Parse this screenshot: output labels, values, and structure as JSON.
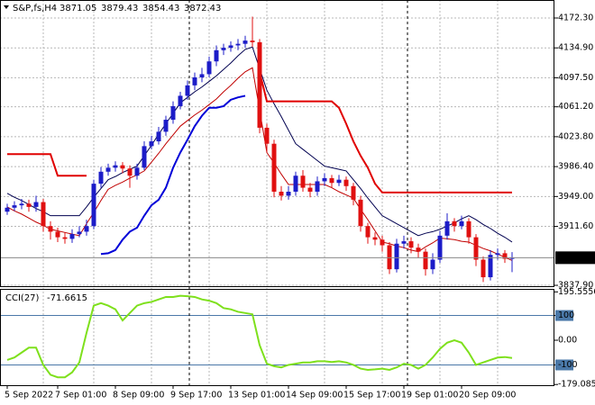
{
  "chart_data": [
    {
      "type": "candlestick",
      "title": "S&P,fs,H4",
      "categories": [
        "5 Sep 2022",
        null,
        null,
        null,
        null,
        null,
        null,
        "7 Sep 01:00",
        null,
        null,
        null,
        null,
        null,
        null,
        null,
        "8 Sep 09:00",
        null,
        null,
        null,
        null,
        null,
        null,
        null,
        "9 Sep 17:00",
        null,
        null,
        null,
        null,
        null,
        null,
        null,
        "13 Sep 01:00",
        null,
        null,
        null,
        null,
        null,
        null,
        null,
        "14 Sep 09:00",
        null,
        null,
        null,
        null,
        null,
        null,
        null,
        "15 Sep 17:00",
        null,
        null,
        null,
        null,
        null,
        null,
        null,
        "19 Sep 01:00",
        null,
        null,
        null,
        null,
        null,
        null,
        null,
        "20 Sep 09:00",
        null,
        null,
        null,
        null,
        null,
        null,
        null
      ],
      "candles": [
        [
          3930,
          3940,
          3926,
          3935
        ],
        [
          3935,
          3943,
          3931,
          3938
        ],
        [
          3938,
          3946,
          3933,
          3940
        ],
        [
          3940,
          3945,
          3930,
          3936
        ],
        [
          3936,
          3950,
          3930,
          3942
        ],
        [
          3942,
          3946,
          3905,
          3912
        ],
        [
          3912,
          3918,
          3895,
          3905
        ],
        [
          3905,
          3910,
          3892,
          3898
        ],
        [
          3898,
          3904,
          3890,
          3896
        ],
        [
          3896,
          3908,
          3891,
          3902
        ],
        [
          3902,
          3912,
          3898,
          3905
        ],
        [
          3905,
          3920,
          3900,
          3912
        ],
        [
          3912,
          3970,
          3908,
          3965
        ],
        [
          3965,
          3986,
          3960,
          3980
        ],
        [
          3980,
          3990,
          3975,
          3985
        ],
        [
          3985,
          3993,
          3980,
          3988
        ],
        [
          3988,
          3992,
          3978,
          3984
        ],
        [
          3984,
          3988,
          3960,
          3975
        ],
        [
          3975,
          3990,
          3970,
          3985
        ],
        [
          3985,
          4018,
          3982,
          4012
        ],
        [
          4012,
          4025,
          4008,
          4018
        ],
        [
          4018,
          4036,
          4014,
          4030
        ],
        [
          4030,
          4050,
          4025,
          4045
        ],
        [
          4045,
          4068,
          4040,
          4062
        ],
        [
          4062,
          4080,
          4058,
          4075
        ],
        [
          4075,
          4094,
          4070,
          4088
        ],
        [
          4088,
          4104,
          4082,
          4098
        ],
        [
          4098,
          4110,
          4092,
          4102
        ],
        [
          4102,
          4124,
          4098,
          4118
        ],
        [
          4118,
          4138,
          4112,
          4132
        ],
        [
          4132,
          4140,
          4126,
          4135
        ],
        [
          4135,
          4143,
          4130,
          4138
        ],
        [
          4138,
          4146,
          4132,
          4140
        ],
        [
          4140,
          4150,
          4135,
          4144
        ],
        [
          4144,
          4174,
          4136,
          4142
        ],
        [
          4142,
          4146,
          4028,
          4035
        ],
        [
          4035,
          4040,
          4005,
          4015
        ],
        [
          4015,
          4020,
          3948,
          3955
        ],
        [
          3955,
          3962,
          3944,
          3950
        ],
        [
          3950,
          3962,
          3945,
          3955
        ],
        [
          3955,
          3980,
          3950,
          3975
        ],
        [
          3975,
          3982,
          3955,
          3960
        ],
        [
          3960,
          3966,
          3948,
          3955
        ],
        [
          3955,
          3974,
          3950,
          3968
        ],
        [
          3968,
          3978,
          3962,
          3972
        ],
        [
          3972,
          3976,
          3960,
          3966
        ],
        [
          3966,
          3976,
          3962,
          3970
        ],
        [
          3970,
          3974,
          3956,
          3962
        ],
        [
          3962,
          3966,
          3938,
          3945
        ],
        [
          3945,
          3950,
          3905,
          3912
        ],
        [
          3912,
          3916,
          3890,
          3898
        ],
        [
          3898,
          3904,
          3888,
          3895
        ],
        [
          3895,
          3900,
          3880,
          3888
        ],
        [
          3888,
          3892,
          3852,
          3858
        ],
        [
          3858,
          3896,
          3854,
          3890
        ],
        [
          3890,
          3900,
          3884,
          3893
        ],
        [
          3893,
          3898,
          3878,
          3885
        ],
        [
          3885,
          3890,
          3872,
          3880
        ],
        [
          3880,
          3884,
          3850,
          3858
        ],
        [
          3858,
          3878,
          3852,
          3870
        ],
        [
          3870,
          3906,
          3866,
          3900
        ],
        [
          3900,
          3928,
          3895,
          3918
        ],
        [
          3918,
          3922,
          3905,
          3912
        ],
        [
          3912,
          3925,
          3908,
          3918
        ],
        [
          3918,
          3922,
          3890,
          3898
        ],
        [
          3898,
          3902,
          3862,
          3870
        ],
        [
          3870,
          3874,
          3842,
          3848
        ],
        [
          3848,
          3882,
          3844,
          3876
        ],
        [
          3876,
          3884,
          3870,
          3878
        ],
        [
          3878,
          3882,
          3866,
          3871.05
        ],
        [
          3871.05,
          3879.43,
          3854.43,
          3872.43
        ]
      ],
      "up_color": "#1c1cc8",
      "down_color": "#e01010",
      "series": [
        {
          "color": "#000050",
          "width": 1,
          "values": [
            3953,
            3948,
            3944,
            3939,
            3934,
            3930,
            3925,
            3925,
            3925,
            3925,
            3925,
            3936,
            3948,
            3959,
            3970,
            3974,
            3979,
            3983,
            3987,
            4000,
            4013,
            4027,
            4040,
            4053,
            4066,
            4073,
            4080,
            4086,
            4093,
            4100,
            4108,
            4116,
            4125,
            4133,
            4136,
            4109,
            4082,
            4065,
            4049,
            4032,
            4015,
            4008,
            4001,
            3994,
            3987,
            3985,
            3983,
            3981,
            3970,
            3959,
            3947,
            3936,
            3925,
            3920,
            3915,
            3910,
            3905,
            3900,
            3903,
            3905,
            3908,
            3912,
            3916,
            3921,
            3925,
            3920,
            3914,
            3909,
            3903,
            3898,
            3892
          ]
        },
        {
          "color": "#c00000",
          "width": 1,
          "values": [
            3936,
            3931,
            3927,
            3922,
            3917,
            3913,
            3908,
            3906,
            3904,
            3902,
            3900,
            3915,
            3929,
            3944,
            3958,
            3963,
            3967,
            3972,
            3976,
            3981,
            3992,
            4003,
            4015,
            4026,
            4037,
            4044,
            4051,
            4057,
            4064,
            4071,
            4080,
            4088,
            4097,
            4105,
            4110,
            4057,
            4004,
            3991,
            3977,
            3964,
            3964,
            3964,
            3964,
            3964,
            3964,
            3960,
            3955,
            3951,
            3947,
            3933,
            3920,
            3906,
            3892,
            3890,
            3887,
            3885,
            3882,
            3880,
            3886,
            3891,
            3897,
            3896,
            3895,
            3893,
            3892,
            3888,
            3884,
            3881,
            3877,
            3873,
            3869
          ]
        },
        {
          "color": "#e00000",
          "width": 2,
          "values": [
            4002,
            4002,
            4002,
            4002,
            4002,
            4002,
            4002,
            3975,
            3975,
            3975,
            3975,
            3975,
            null,
            null,
            null,
            null,
            null,
            null,
            null,
            null,
            null,
            null,
            null,
            null,
            null,
            null,
            null,
            null,
            null,
            null,
            null,
            null,
            null,
            null,
            null,
            4105,
            4068,
            4068,
            4068,
            4068,
            4068,
            4068,
            4068,
            4068,
            4068,
            4068,
            4060,
            4040,
            4018,
            4000,
            3985,
            3965,
            3954,
            3954,
            3954,
            3954,
            3954,
            3954,
            3954,
            3954,
            3954,
            3954,
            3954,
            3954,
            3954,
            3954,
            3954,
            3954,
            3954,
            3954,
            3954
          ]
        },
        {
          "color": "#0000d8",
          "width": 2,
          "values": [
            null,
            null,
            null,
            null,
            null,
            null,
            null,
            null,
            null,
            null,
            null,
            null,
            null,
            3877,
            3878,
            3882,
            3895,
            3905,
            3910,
            3925,
            3938,
            3945,
            3960,
            3985,
            4004,
            4020,
            4037,
            4050,
            4060,
            4060,
            4062,
            4070,
            4073,
            4075,
            null,
            null,
            null,
            null,
            null,
            null,
            null,
            null,
            null,
            null,
            null,
            null,
            null,
            null,
            null,
            null,
            null,
            null,
            null,
            null,
            null,
            null,
            null,
            null,
            null,
            null,
            null,
            null,
            null,
            null,
            null,
            null,
            null,
            null,
            null,
            null,
            null
          ]
        }
      ],
      "ylim": [
        3836.8,
        4194.8
      ],
      "yticks": [
        {
          "value": 4172.3,
          "label": "4172.30"
        },
        {
          "value": 4134.9,
          "label": "4134.90"
        },
        {
          "value": 4097.5,
          "label": "4097.50"
        },
        {
          "value": 4061.2,
          "label": "4061.20"
        },
        {
          "value": 4023.8,
          "label": "4023.80"
        },
        {
          "value": 3986.4,
          "label": "3986.40"
        },
        {
          "value": 3949,
          "label": "3949.00"
        },
        {
          "value": 3911.6,
          "label": "3911.60"
        },
        {
          "value": 3837.9,
          "label": "3837.90"
        }
      ],
      "grid": true
    },
    {
      "type": "line",
      "title": "CCI(27)",
      "values": [
        -80,
        -70,
        -50,
        -30,
        -30,
        -100,
        -140,
        -150,
        -150,
        -130,
        -90,
        30,
        140,
        150,
        140,
        125,
        80,
        110,
        140,
        150,
        155,
        165,
        175,
        175,
        180,
        178,
        175,
        165,
        160,
        150,
        130,
        125,
        115,
        110,
        105,
        -20,
        -95,
        -105,
        -110,
        -100,
        -95,
        -90,
        -90,
        -85,
        -85,
        -88,
        -85,
        -90,
        -100,
        -115,
        -120,
        -118,
        -115,
        -120,
        -110,
        -95,
        -100,
        -115,
        -100,
        -70,
        -35,
        -10,
        0,
        -10,
        -50,
        -100,
        -90,
        -80,
        -70,
        -68,
        -71.6615
      ],
      "color": "#7ee01c",
      "level_color": "#4a78a8",
      "ylim": [
        -182,
        204
      ],
      "yticks": [
        195.5556,
        100,
        {
          "value": 0,
          "label": "0.00"
        },
        -100,
        -179.0852
      ],
      "levels": [
        100,
        -100
      ]
    }
  ]
}
